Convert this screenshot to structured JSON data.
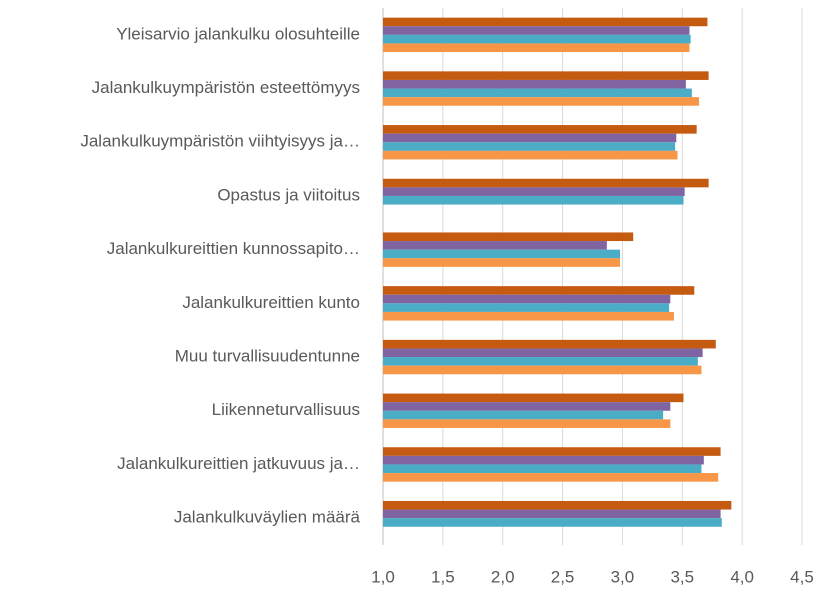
{
  "chart_data": {
    "type": "hbar",
    "categories": [
      "Yleisarvio jalankulku olosuhteille",
      "Jalankulkuympäristön esteettömyys",
      "Jalankulkuympäristön viihtyisyys ja…",
      "Opastus ja viitoitus",
      "Jalankulkureittien kunnossapito…",
      "Jalankulkureittien kunto",
      "Muu turvallisuudentunne",
      "Liikenneturvallisuus",
      "Jalankulkureittien jatkuvuus ja…",
      "Jalankulkuväylien määrä"
    ],
    "series": [
      {
        "color": "#c55a11",
        "values": [
          3.71,
          3.72,
          3.62,
          3.72,
          3.09,
          3.6,
          3.78,
          3.51,
          3.82,
          3.91
        ]
      },
      {
        "color": "#8064a2",
        "values": [
          3.56,
          3.53,
          3.45,
          3.52,
          2.87,
          3.4,
          3.67,
          3.4,
          3.68,
          3.82
        ]
      },
      {
        "color": "#4bacc6",
        "values": [
          3.57,
          3.58,
          3.44,
          3.51,
          2.98,
          3.39,
          3.63,
          3.34,
          3.66,
          3.83
        ]
      },
      {
        "color": "#f79646",
        "values": [
          3.56,
          3.64,
          3.46,
          null,
          2.98,
          3.43,
          3.66,
          3.4,
          3.8,
          null
        ]
      }
    ],
    "xlim": [
      1,
      4.5
    ],
    "xticks": [
      {
        "value": 1,
        "label": "1,0"
      },
      {
        "value": 1.5,
        "label": "1,5"
      },
      {
        "value": 2,
        "label": "2,0"
      },
      {
        "value": 2.5,
        "label": "2,5"
      },
      {
        "value": 3,
        "label": "3,0"
      },
      {
        "value": 3.5,
        "label": "3,5"
      },
      {
        "value": 4,
        "label": "4,0"
      },
      {
        "value": 4.5,
        "label": "4,5"
      }
    ],
    "grid": true
  }
}
